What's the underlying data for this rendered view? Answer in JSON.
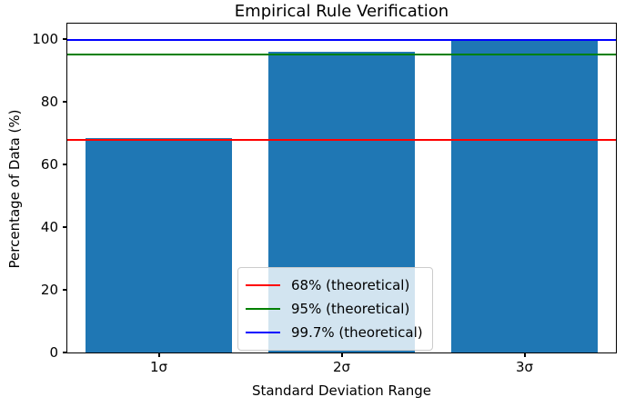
{
  "chart_data": {
    "type": "bar",
    "title": "Empirical Rule Verification",
    "xlabel": "Standard Deviation Range",
    "ylabel": "Percentage of Data (%)",
    "categories": [
      "1σ",
      "2σ",
      "3σ"
    ],
    "values": [
      68.5,
      95.9,
      99.4
    ],
    "bar_color": "#1f77b4",
    "ylim": [
      0,
      105
    ],
    "yticks": [
      0,
      20,
      40,
      60,
      80,
      100
    ],
    "grid": false,
    "legend_position": "lower-center",
    "reference_lines": [
      {
        "value": 68,
        "color": "#ff0000",
        "label": "68% (theoretical)"
      },
      {
        "value": 95,
        "color": "#008000",
        "label": "95% (theoretical)"
      },
      {
        "value": 99.7,
        "color": "#0000ff",
        "label": "99.7% (theoretical)"
      }
    ]
  }
}
